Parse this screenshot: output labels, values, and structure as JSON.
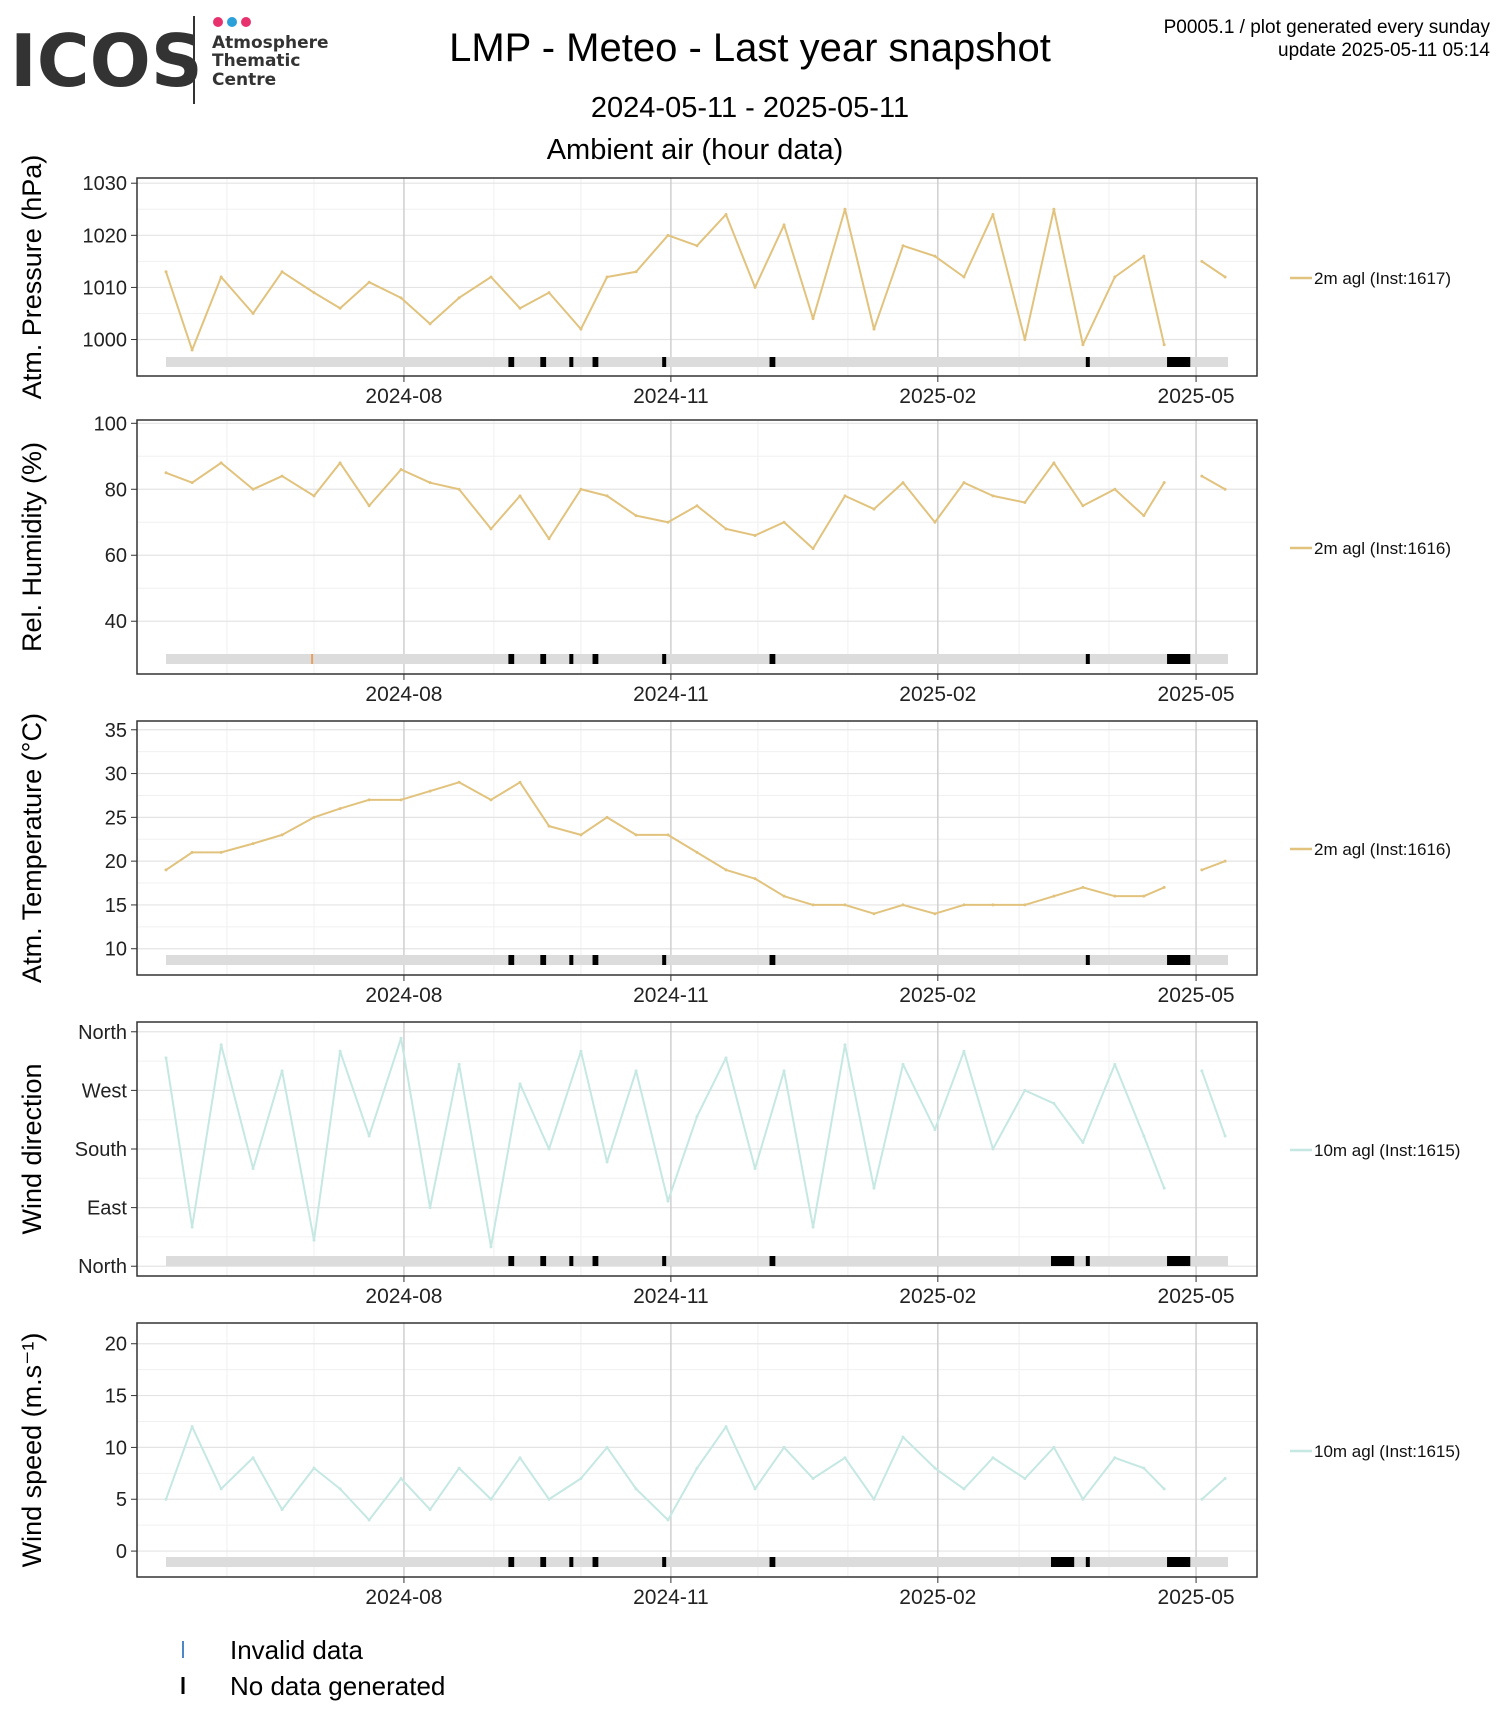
{
  "header": {
    "logo_text": "ICOS",
    "logo_sub": [
      "Atmosphere",
      "Thematic",
      "Centre"
    ],
    "logo_dot_colors": [
      "#e8326e",
      "#2a9fd8",
      "#e8326e"
    ],
    "title": "LMP - Meteo - Last year snapshot",
    "date_range": "2024-05-11 - 2025-05-11",
    "subtitle": "Ambient air (hour data)",
    "info_line1": "P0005.1 / plot generated every sunday",
    "info_line2": "update  2025-05-11 05:14"
  },
  "legend_bottom": {
    "invalid_label": "Invalid data",
    "invalid_color": "#4f86c6",
    "nodata_label": "No data generated",
    "nodata_color": "#000000"
  },
  "chart_data": [
    {
      "type": "line",
      "ylabel": "Atm. Pressure (hPa)",
      "ylim": [
        993,
        1031
      ],
      "yticks": [
        1000,
        1010,
        1020,
        1030
      ],
      "ytick_labels": [
        "1000",
        "1010",
        "1020",
        "1030"
      ],
      "x_range": [
        "2024-05-11",
        "2025-05-11"
      ],
      "xtick_labels": [
        "2024-08",
        "2024-11",
        "2025-02",
        "2025-05"
      ],
      "series_name": "2m agl (Inst:1617)",
      "color": "#e2c37e",
      "invalid_marks": [],
      "x": [
        "2024-05-11",
        "2024-05-20",
        "2024-05-30",
        "2024-06-10",
        "2024-06-20",
        "2024-07-01",
        "2024-07-10",
        "2024-07-20",
        "2024-07-31",
        "2024-08-10",
        "2024-08-20",
        "2024-08-31",
        "2024-09-10",
        "2024-09-20",
        "2024-10-01",
        "2024-10-10",
        "2024-10-20",
        "2024-10-31",
        "2024-11-10",
        "2024-11-20",
        "2024-11-30",
        "2024-12-10",
        "2024-12-20",
        "2024-12-31",
        "2025-01-10",
        "2025-01-20",
        "2025-01-31",
        "2025-02-10",
        "2025-02-20",
        "2025-03-03",
        "2025-03-13",
        "2025-03-23",
        "2025-04-03",
        "2025-04-13",
        "2025-04-20",
        "2025-04-23",
        "2025-05-03",
        "2025-05-11"
      ],
      "values": [
        1013,
        998,
        1012,
        1005,
        1013,
        1009,
        1006,
        1011,
        1008,
        1003,
        1008,
        1012,
        1006,
        1009,
        1002,
        1012,
        1013,
        1020,
        1018,
        1024,
        1010,
        1022,
        1004,
        1025,
        1002,
        1018,
        1016,
        1012,
        1024,
        1000,
        1025,
        999,
        1012,
        1016,
        999,
        null,
        1015,
        1012
      ]
    },
    {
      "type": "line",
      "ylabel": "Rel. Humidity (%)",
      "ylim": [
        24,
        101
      ],
      "yticks": [
        40,
        60,
        80,
        100
      ],
      "ytick_labels": [
        "40",
        "60",
        "80",
        "100"
      ],
      "x_range": [
        "2024-05-11",
        "2025-05-11"
      ],
      "xtick_labels": [
        "2024-08",
        "2024-11",
        "2025-02",
        "2025-05"
      ],
      "series_name": "2m agl (Inst:1616)",
      "color": "#e2c37e",
      "invalid_marks": [
        "2024-06-30"
      ],
      "x": [
        "2024-05-11",
        "2024-05-20",
        "2024-05-30",
        "2024-06-10",
        "2024-06-20",
        "2024-07-01",
        "2024-07-10",
        "2024-07-20",
        "2024-07-31",
        "2024-08-10",
        "2024-08-20",
        "2024-08-31",
        "2024-09-10",
        "2024-09-20",
        "2024-10-01",
        "2024-10-10",
        "2024-10-20",
        "2024-10-31",
        "2024-11-10",
        "2024-11-20",
        "2024-11-30",
        "2024-12-10",
        "2024-12-20",
        "2024-12-31",
        "2025-01-10",
        "2025-01-20",
        "2025-01-31",
        "2025-02-10",
        "2025-02-20",
        "2025-03-03",
        "2025-03-13",
        "2025-03-23",
        "2025-04-03",
        "2025-04-13",
        "2025-04-20",
        "2025-04-23",
        "2025-05-03",
        "2025-05-11"
      ],
      "values": [
        85,
        82,
        88,
        80,
        84,
        78,
        88,
        75,
        86,
        82,
        80,
        68,
        78,
        65,
        80,
        78,
        72,
        70,
        75,
        68,
        66,
        70,
        62,
        78,
        74,
        82,
        70,
        82,
        78,
        76,
        88,
        75,
        80,
        72,
        82,
        null,
        84,
        80
      ]
    },
    {
      "type": "line",
      "ylabel": "Atm. Temperature (°C)",
      "ylim": [
        7,
        36
      ],
      "yticks": [
        10,
        15,
        20,
        25,
        30,
        35
      ],
      "ytick_labels": [
        "10",
        "15",
        "20",
        "25",
        "30",
        "35"
      ],
      "x_range": [
        "2024-05-11",
        "2025-05-11"
      ],
      "xtick_labels": [
        "2024-08",
        "2024-11",
        "2025-02",
        "2025-05"
      ],
      "series_name": "2m agl (Inst:1616)",
      "color": "#e2c37e",
      "invalid_marks": [],
      "x": [
        "2024-05-11",
        "2024-05-20",
        "2024-05-30",
        "2024-06-10",
        "2024-06-20",
        "2024-07-01",
        "2024-07-10",
        "2024-07-20",
        "2024-07-31",
        "2024-08-10",
        "2024-08-20",
        "2024-08-31",
        "2024-09-10",
        "2024-09-20",
        "2024-10-01",
        "2024-10-10",
        "2024-10-20",
        "2024-10-31",
        "2024-11-10",
        "2024-11-20",
        "2024-11-30",
        "2024-12-10",
        "2024-12-20",
        "2024-12-31",
        "2025-01-10",
        "2025-01-20",
        "2025-01-31",
        "2025-02-10",
        "2025-02-20",
        "2025-03-03",
        "2025-03-13",
        "2025-03-23",
        "2025-04-03",
        "2025-04-13",
        "2025-04-20",
        "2025-04-23",
        "2025-05-03",
        "2025-05-11"
      ],
      "values": [
        19,
        21,
        21,
        22,
        23,
        25,
        26,
        27,
        27,
        28,
        29,
        27,
        29,
        24,
        23,
        25,
        23,
        23,
        21,
        19,
        18,
        16,
        15,
        15,
        14,
        15,
        14,
        15,
        15,
        15,
        16,
        17,
        16,
        16,
        17,
        null,
        19,
        20
      ]
    },
    {
      "type": "line",
      "ylabel": "Wind direction",
      "ylim": [
        -15,
        375
      ],
      "yticks": [
        0,
        90,
        180,
        270,
        360
      ],
      "ytick_labels": [
        "North",
        "East",
        "South",
        "West",
        "North"
      ],
      "x_range": [
        "2024-05-11",
        "2025-05-11"
      ],
      "xtick_labels": [
        "2024-08",
        "2024-11",
        "2025-02",
        "2025-05"
      ],
      "series_name": "10m agl (Inst:1615)",
      "color": "#c5e8e3",
      "invalid_marks": [],
      "x": [
        "2024-05-11",
        "2024-05-20",
        "2024-05-30",
        "2024-06-10",
        "2024-06-20",
        "2024-07-01",
        "2024-07-10",
        "2024-07-20",
        "2024-07-31",
        "2024-08-10",
        "2024-08-20",
        "2024-08-31",
        "2024-09-10",
        "2024-09-20",
        "2024-10-01",
        "2024-10-10",
        "2024-10-20",
        "2024-10-31",
        "2024-11-10",
        "2024-11-20",
        "2024-11-30",
        "2024-12-10",
        "2024-12-20",
        "2024-12-31",
        "2025-01-10",
        "2025-01-20",
        "2025-01-31",
        "2025-02-10",
        "2025-02-20",
        "2025-03-03",
        "2025-03-13",
        "2025-03-23",
        "2025-04-03",
        "2025-04-13",
        "2025-04-20",
        "2025-04-23",
        "2025-05-03",
        "2025-05-11"
      ],
      "values": [
        320,
        60,
        340,
        150,
        300,
        40,
        330,
        200,
        350,
        90,
        310,
        30,
        280,
        180,
        330,
        160,
        300,
        100,
        230,
        320,
        150,
        300,
        60,
        340,
        120,
        310,
        210,
        330,
        180,
        270,
        250,
        190,
        310,
        200,
        120,
        null,
        300,
        200
      ]
    },
    {
      "type": "line",
      "ylabel": "Wind speed (m.s⁻¹)",
      "ylim": [
        -2.5,
        22
      ],
      "yticks": [
        0,
        5,
        10,
        15,
        20
      ],
      "ytick_labels": [
        "0",
        "5",
        "10",
        "15",
        "20"
      ],
      "x_range": [
        "2024-05-11",
        "2025-05-11"
      ],
      "xtick_labels": [
        "2024-08",
        "2024-11",
        "2025-02",
        "2025-05"
      ],
      "series_name": "10m agl (Inst:1615)",
      "color": "#c5e8e3",
      "invalid_marks": [],
      "x": [
        "2024-05-11",
        "2024-05-20",
        "2024-05-30",
        "2024-06-10",
        "2024-06-20",
        "2024-07-01",
        "2024-07-10",
        "2024-07-20",
        "2024-07-31",
        "2024-08-10",
        "2024-08-20",
        "2024-08-31",
        "2024-09-10",
        "2024-09-20",
        "2024-10-01",
        "2024-10-10",
        "2024-10-20",
        "2024-10-31",
        "2024-11-10",
        "2024-11-20",
        "2024-11-30",
        "2024-12-10",
        "2024-12-20",
        "2024-12-31",
        "2025-01-10",
        "2025-01-20",
        "2025-01-31",
        "2025-02-10",
        "2025-02-20",
        "2025-03-03",
        "2025-03-13",
        "2025-03-23",
        "2025-04-03",
        "2025-04-13",
        "2025-04-20",
        "2025-04-23",
        "2025-05-03",
        "2025-05-11"
      ],
      "values": [
        5,
        12,
        6,
        9,
        4,
        8,
        6,
        3,
        7,
        4,
        8,
        5,
        9,
        5,
        7,
        10,
        6,
        3,
        8,
        12,
        6,
        10,
        7,
        9,
        5,
        11,
        8,
        6,
        9,
        7,
        10,
        5,
        9,
        8,
        6,
        null,
        5,
        7
      ]
    }
  ],
  "nodata_bars": [
    {
      "from": "2024-09-06",
      "to": "2024-09-08"
    },
    {
      "from": "2024-09-17",
      "to": "2024-09-19"
    },
    {
      "from": "2024-09-27",
      "to": "2024-09-28"
    },
    {
      "from": "2024-10-05",
      "to": "2024-10-07"
    },
    {
      "from": "2024-10-29",
      "to": "2024-10-30"
    },
    {
      "from": "2024-12-05",
      "to": "2024-12-07"
    },
    {
      "from": "2025-03-24",
      "to": "2025-03-25"
    },
    {
      "from": "2025-04-21",
      "to": "2025-04-29"
    }
  ],
  "nodata_bars_extra_wind": [
    {
      "from": "2025-03-12",
      "to": "2025-03-20"
    }
  ]
}
